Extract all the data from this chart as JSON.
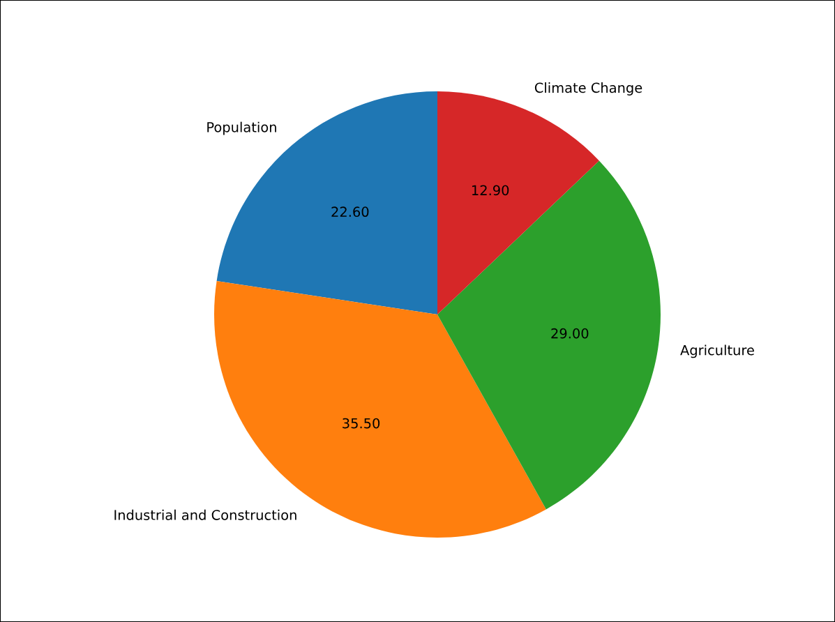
{
  "chart_data": {
    "type": "pie",
    "categories": [
      "Population",
      "Industrial and Construction",
      "Agriculture",
      "Climate Change"
    ],
    "values": [
      22.6,
      35.5,
      29.0,
      12.9
    ],
    "value_labels": [
      "22.60",
      "35.50",
      "29.00",
      "12.90"
    ],
    "colors": [
      "#1f77b4",
      "#ff7f0e",
      "#2ca02c",
      "#d62728"
    ]
  }
}
